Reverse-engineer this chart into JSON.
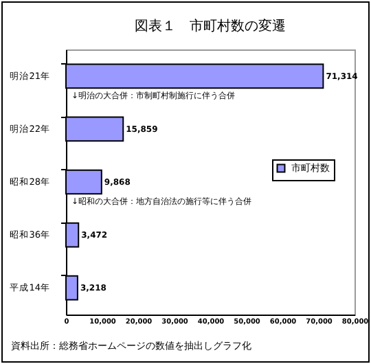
{
  "chart_data": {
    "type": "bar",
    "orientation": "horizontal",
    "title": "図表１　市町村数の変遷",
    "categories": [
      "明治21年",
      "明治22年",
      "昭和28年",
      "昭和36年",
      "平成14年"
    ],
    "series": [
      {
        "name": "市町村数",
        "color": "#9999ff",
        "values": [
          71314,
          15859,
          9868,
          3472,
          3218
        ],
        "value_labels": [
          "71,314",
          "15,859",
          "9,868",
          "3,472",
          "3,218"
        ]
      }
    ],
    "xlim": [
      0,
      80000
    ],
    "xticks": [
      0,
      {
        "value": 10000,
        "label": "10,000"
      },
      {
        "value": 20000,
        "label": "20,000"
      },
      {
        "value": 30000,
        "label": "30,000"
      },
      {
        "value": 40000,
        "label": "40,000"
      },
      {
        "value": 50000,
        "label": "50,000"
      },
      {
        "value": 60000,
        "label": "60,000"
      },
      {
        "value": 70000,
        "label": "70,000"
      },
      {
        "value": 80000,
        "label": "80,000"
      }
    ],
    "legend": "right",
    "annotations": [
      "↓明治の大合併：市制町村制施行に伴う合併",
      "↓昭和の大合併：地方自治法の施行等に伴う合併",
      "資料出所：総務省ホームページの数値を抽出しグラフ化"
    ]
  }
}
